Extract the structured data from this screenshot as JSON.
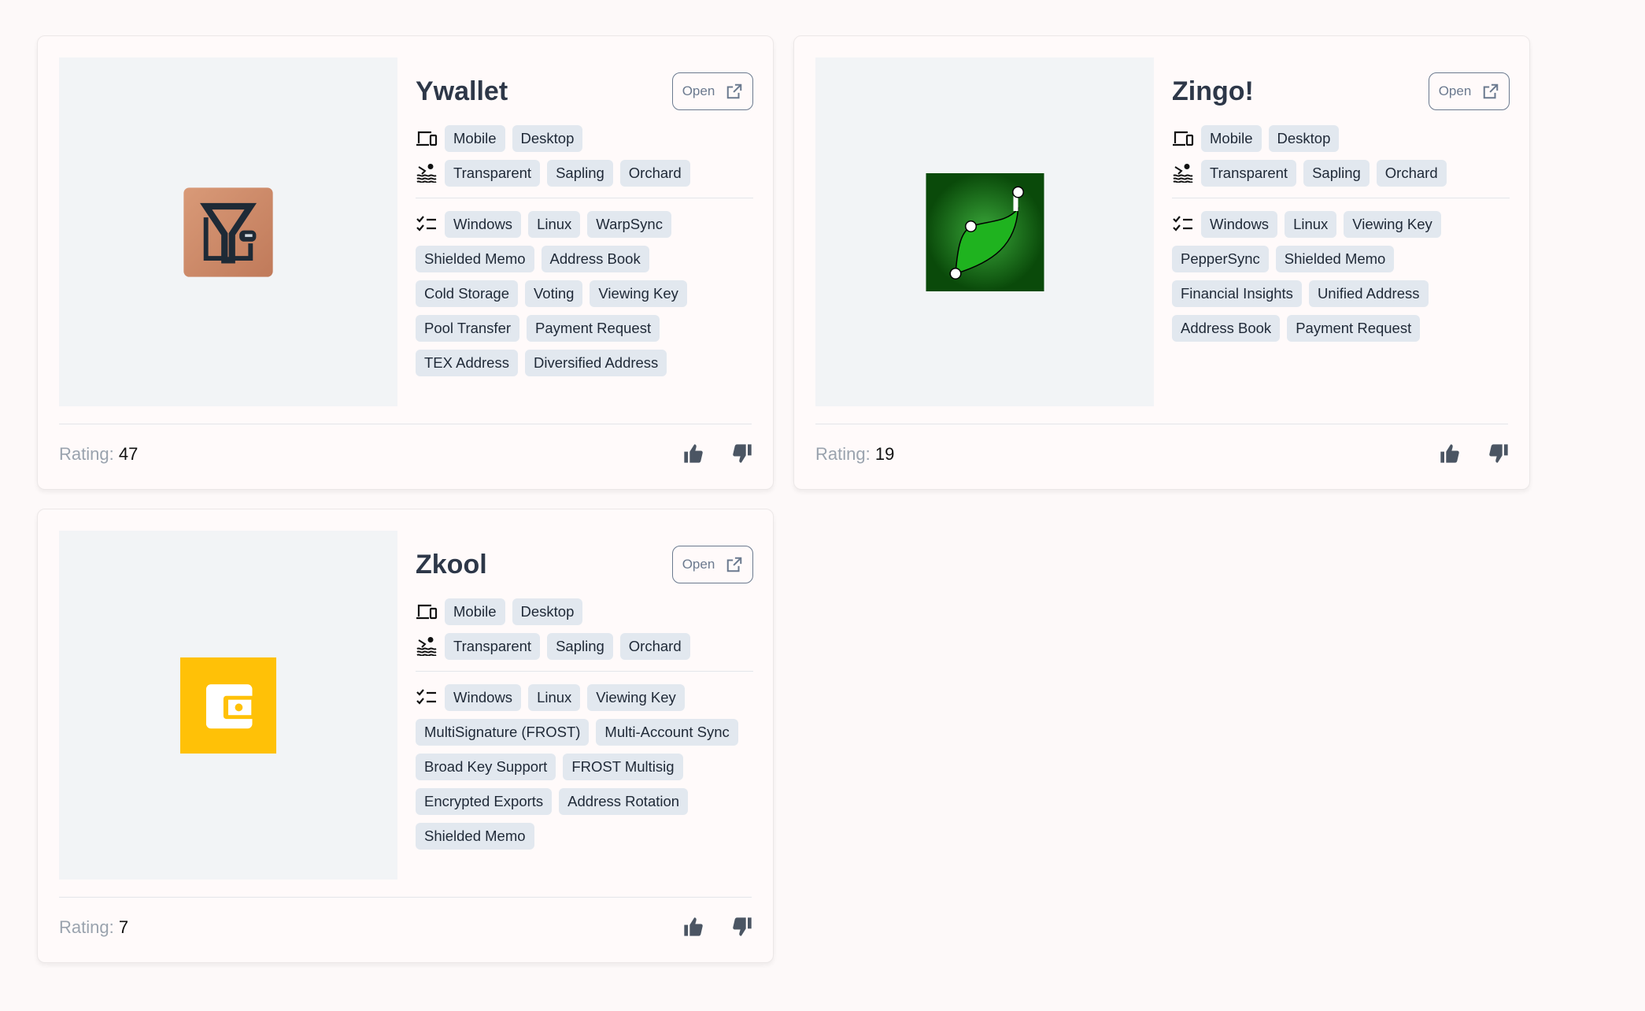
{
  "wallets": [
    {
      "name": "Ywallet",
      "open_label": "Open",
      "devices": [
        "Mobile",
        "Desktop"
      ],
      "pools": [
        "Transparent",
        "Sapling",
        "Orchard"
      ],
      "features": [
        "Windows",
        "Linux",
        "WarpSync",
        "Shielded Memo",
        "Address Book",
        "Cold Storage",
        "Voting",
        "Viewing Key",
        "Pool Transfer",
        "Payment Request",
        "TEX Address",
        "Diversified Address"
      ],
      "rating_label": "Rating:",
      "rating": "47",
      "logo": "ywallet-logo"
    },
    {
      "name": "Zingo!",
      "open_label": "Open",
      "devices": [
        "Mobile",
        "Desktop"
      ],
      "pools": [
        "Transparent",
        "Sapling",
        "Orchard"
      ],
      "features": [
        "Windows",
        "Linux",
        "Viewing Key",
        "PepperSync",
        "Shielded Memo",
        "Financial Insights",
        "Unified Address",
        "Address Book",
        "Payment Request"
      ],
      "rating_label": "Rating:",
      "rating": "19",
      "logo": "zingo-logo"
    },
    {
      "name": "Zkool",
      "open_label": "Open",
      "devices": [
        "Mobile",
        "Desktop"
      ],
      "pools": [
        "Transparent",
        "Sapling",
        "Orchard"
      ],
      "features": [
        "Windows",
        "Linux",
        "Viewing Key",
        "MultiSignature (FROST)",
        "Multi-Account Sync",
        "Broad Key Support",
        "FROST Multisig",
        "Encrypted Exports",
        "Address Rotation",
        "Shielded Memo"
      ],
      "rating_label": "Rating:",
      "rating": "7",
      "logo": "zkool-logo"
    }
  ],
  "colors": {
    "tag_bg": "#e2e8ef",
    "title": "#2d3748",
    "icon": "#4b5563"
  }
}
